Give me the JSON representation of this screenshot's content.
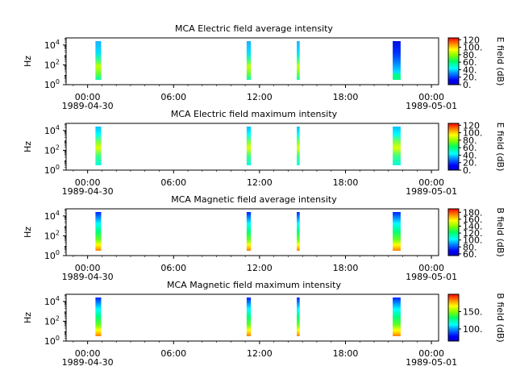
{
  "chart_data": [
    {
      "type": "heatmap",
      "title": "MCA  Electric field average intensity",
      "ylabel": "Hz",
      "colorbar_label": "E field (dB)",
      "colorbar_ticks": [
        "0.",
        "20.",
        "40.",
        "60.",
        "80.",
        "100.",
        "120"
      ],
      "colorbar_range": [
        0,
        125
      ],
      "y_scale": "log",
      "y_ticks": [
        {
          "base": "10",
          "exp": "0"
        },
        {
          "base": "10",
          "exp": "2"
        },
        {
          "base": "10",
          "exp": "4"
        }
      ],
      "x_ticks": [
        {
          "time": "00:00",
          "date": "1989-04-30"
        },
        {
          "time": "06:00",
          "date": ""
        },
        {
          "time": "12:00",
          "date": ""
        },
        {
          "time": "18:00",
          "date": ""
        },
        {
          "time": "00:00",
          "date": "1989-05-01"
        }
      ],
      "x_range_hours": [
        -1.5,
        24.5
      ],
      "passes": [
        {
          "start_h": 0.55,
          "end_h": 0.95,
          "pattern": "avgE"
        },
        {
          "start_h": 11.1,
          "end_h": 11.4,
          "pattern": "avgE"
        },
        {
          "start_h": 14.6,
          "end_h": 14.8,
          "pattern": "avgE"
        },
        {
          "start_h": 21.3,
          "end_h": 21.85,
          "pattern": "avgE_dark"
        }
      ]
    },
    {
      "type": "heatmap",
      "title": "MCA  Electric field maximum intensity",
      "ylabel": "Hz",
      "colorbar_label": "E field (dB)",
      "colorbar_ticks": [
        "0.",
        "20.",
        "40.",
        "60.",
        "80.",
        "100.",
        "120"
      ],
      "colorbar_range": [
        0,
        125
      ],
      "y_scale": "log",
      "y_ticks": [
        {
          "base": "10",
          "exp": "0"
        },
        {
          "base": "10",
          "exp": "2"
        },
        {
          "base": "10",
          "exp": "4"
        }
      ],
      "x_ticks": [
        {
          "time": "00:00",
          "date": "1989-04-30"
        },
        {
          "time": "06:00",
          "date": ""
        },
        {
          "time": "12:00",
          "date": ""
        },
        {
          "time": "18:00",
          "date": ""
        },
        {
          "time": "00:00",
          "date": "1989-05-01"
        }
      ],
      "x_range_hours": [
        -1.5,
        24.5
      ],
      "passes": [
        {
          "start_h": 0.55,
          "end_h": 0.95,
          "pattern": "maxE"
        },
        {
          "start_h": 11.1,
          "end_h": 11.4,
          "pattern": "maxE"
        },
        {
          "start_h": 14.6,
          "end_h": 14.8,
          "pattern": "maxE"
        },
        {
          "start_h": 21.3,
          "end_h": 21.85,
          "pattern": "maxE"
        }
      ]
    },
    {
      "type": "heatmap",
      "title": "MCA  Magnetic field average intensity",
      "ylabel": "Hz",
      "colorbar_label": "B field (dB)",
      "colorbar_ticks": [
        "60.",
        "80.",
        "100.",
        "120.",
        "140.",
        "160.",
        "180."
      ],
      "colorbar_range": [
        55,
        190
      ],
      "y_scale": "log",
      "y_ticks": [
        {
          "base": "10",
          "exp": "0"
        },
        {
          "base": "10",
          "exp": "2"
        },
        {
          "base": "10",
          "exp": "4"
        }
      ],
      "x_ticks": [
        {
          "time": "00:00",
          "date": "1989-04-30"
        },
        {
          "time": "06:00",
          "date": ""
        },
        {
          "time": "12:00",
          "date": ""
        },
        {
          "time": "18:00",
          "date": ""
        },
        {
          "time": "00:00",
          "date": "1989-05-01"
        }
      ],
      "x_range_hours": [
        -1.5,
        24.5
      ],
      "passes": [
        {
          "start_h": 0.55,
          "end_h": 0.95,
          "pattern": "B"
        },
        {
          "start_h": 11.1,
          "end_h": 11.4,
          "pattern": "B"
        },
        {
          "start_h": 14.6,
          "end_h": 14.8,
          "pattern": "B"
        },
        {
          "start_h": 21.3,
          "end_h": 21.85,
          "pattern": "B"
        }
      ]
    },
    {
      "type": "heatmap",
      "title": "MCA  Magnetic field maximum intensity",
      "ylabel": "Hz",
      "colorbar_label": "B field (dB)",
      "colorbar_ticks": [
        "100.",
        "150."
      ],
      "colorbar_range": [
        65,
        200
      ],
      "y_scale": "log",
      "y_ticks": [
        {
          "base": "10",
          "exp": "0"
        },
        {
          "base": "10",
          "exp": "2"
        },
        {
          "base": "10",
          "exp": "4"
        }
      ],
      "x_ticks": [
        {
          "time": "00:00",
          "date": "1989-04-30"
        },
        {
          "time": "06:00",
          "date": ""
        },
        {
          "time": "12:00",
          "date": ""
        },
        {
          "time": "18:00",
          "date": ""
        },
        {
          "time": "00:00",
          "date": "1989-05-01"
        }
      ],
      "x_range_hours": [
        -1.5,
        24.5
      ],
      "passes": [
        {
          "start_h": 0.55,
          "end_h": 0.95,
          "pattern": "B"
        },
        {
          "start_h": 11.1,
          "end_h": 11.4,
          "pattern": "B"
        },
        {
          "start_h": 14.6,
          "end_h": 14.8,
          "pattern": "B"
        },
        {
          "start_h": 21.3,
          "end_h": 21.85,
          "pattern": "B"
        }
      ]
    }
  ]
}
